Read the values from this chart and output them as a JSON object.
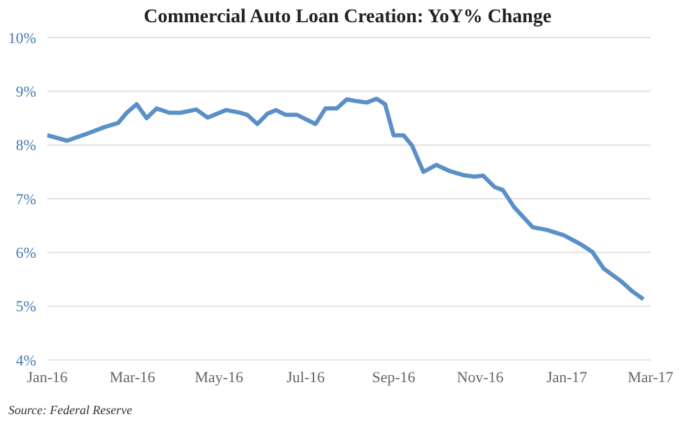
{
  "chart_data": {
    "type": "line",
    "title": "Commercial Auto Loan Creation: YoY% Change",
    "annotations": [
      "Source: Federal Reserve"
    ],
    "x": [
      "2016-01-01",
      "2016-01-15",
      "2016-01-28",
      "2016-02-10",
      "2016-02-20",
      "2016-02-26",
      "2016-03-04",
      "2016-03-11",
      "2016-03-18",
      "2016-03-27",
      "2016-04-04",
      "2016-04-15",
      "2016-04-23",
      "2016-05-06",
      "2016-05-16",
      "2016-05-21",
      "2016-05-28",
      "2016-06-04",
      "2016-06-10",
      "2016-06-17",
      "2016-06-25",
      "2016-07-08",
      "2016-07-15",
      "2016-07-23",
      "2016-07-30",
      "2016-08-05",
      "2016-08-13",
      "2016-08-20",
      "2016-08-26",
      "2016-09-01",
      "2016-09-08",
      "2016-09-14",
      "2016-09-22",
      "2016-10-01",
      "2016-10-10",
      "2016-10-20",
      "2016-10-28",
      "2016-11-03",
      "2016-11-11",
      "2016-11-17",
      "2016-11-25",
      "2016-12-08",
      "2016-12-18",
      "2016-12-30",
      "2017-01-11",
      "2017-01-19",
      "2017-01-27",
      "2017-02-08",
      "2017-02-16",
      "2017-02-24"
    ],
    "series": [
      {
        "color": "#5b8fc7",
        "values": [
          8.18,
          8.08,
          8.2,
          8.33,
          8.41,
          8.6,
          8.76,
          8.5,
          8.68,
          8.6,
          8.6,
          8.66,
          8.51,
          8.65,
          8.6,
          8.56,
          8.39,
          8.58,
          8.65,
          8.56,
          8.56,
          8.39,
          8.68,
          8.68,
          8.85,
          8.82,
          8.79,
          8.86,
          8.76,
          8.18,
          8.18,
          7.99,
          7.5,
          7.63,
          7.52,
          7.44,
          7.41,
          7.43,
          7.22,
          7.16,
          6.84,
          6.47,
          6.42,
          6.32,
          6.15,
          6.01,
          5.7,
          5.47,
          5.28,
          5.13
        ]
      }
    ],
    "xlim": [
      "2016-01-01",
      "2017-03-01"
    ],
    "xticks": [
      {
        "value": "2016-01-01",
        "label": "Jan-16"
      },
      {
        "value": "2016-03-01",
        "label": "Mar-16"
      },
      {
        "value": "2016-05-01",
        "label": "May-16"
      },
      {
        "value": "2016-07-01",
        "label": "Jul-16"
      },
      {
        "value": "2016-09-01",
        "label": "Sep-16"
      },
      {
        "value": "2016-11-01",
        "label": "Nov-16"
      },
      {
        "value": "2017-01-01",
        "label": "Jan-17"
      },
      {
        "value": "2017-03-01",
        "label": "Mar-17"
      }
    ],
    "ylim": [
      4,
      10
    ],
    "yticks": [
      {
        "value": 4,
        "label": "4%"
      },
      {
        "value": 5,
        "label": "5%"
      },
      {
        "value": 6,
        "label": "6%"
      },
      {
        "value": 7,
        "label": "7%"
      },
      {
        "value": 8,
        "label": "8%"
      },
      {
        "value": 9,
        "label": "9%"
      },
      {
        "value": 10,
        "label": "10%"
      }
    ],
    "grid": "y",
    "legend": false,
    "marker": "none",
    "line_style": "solid"
  }
}
